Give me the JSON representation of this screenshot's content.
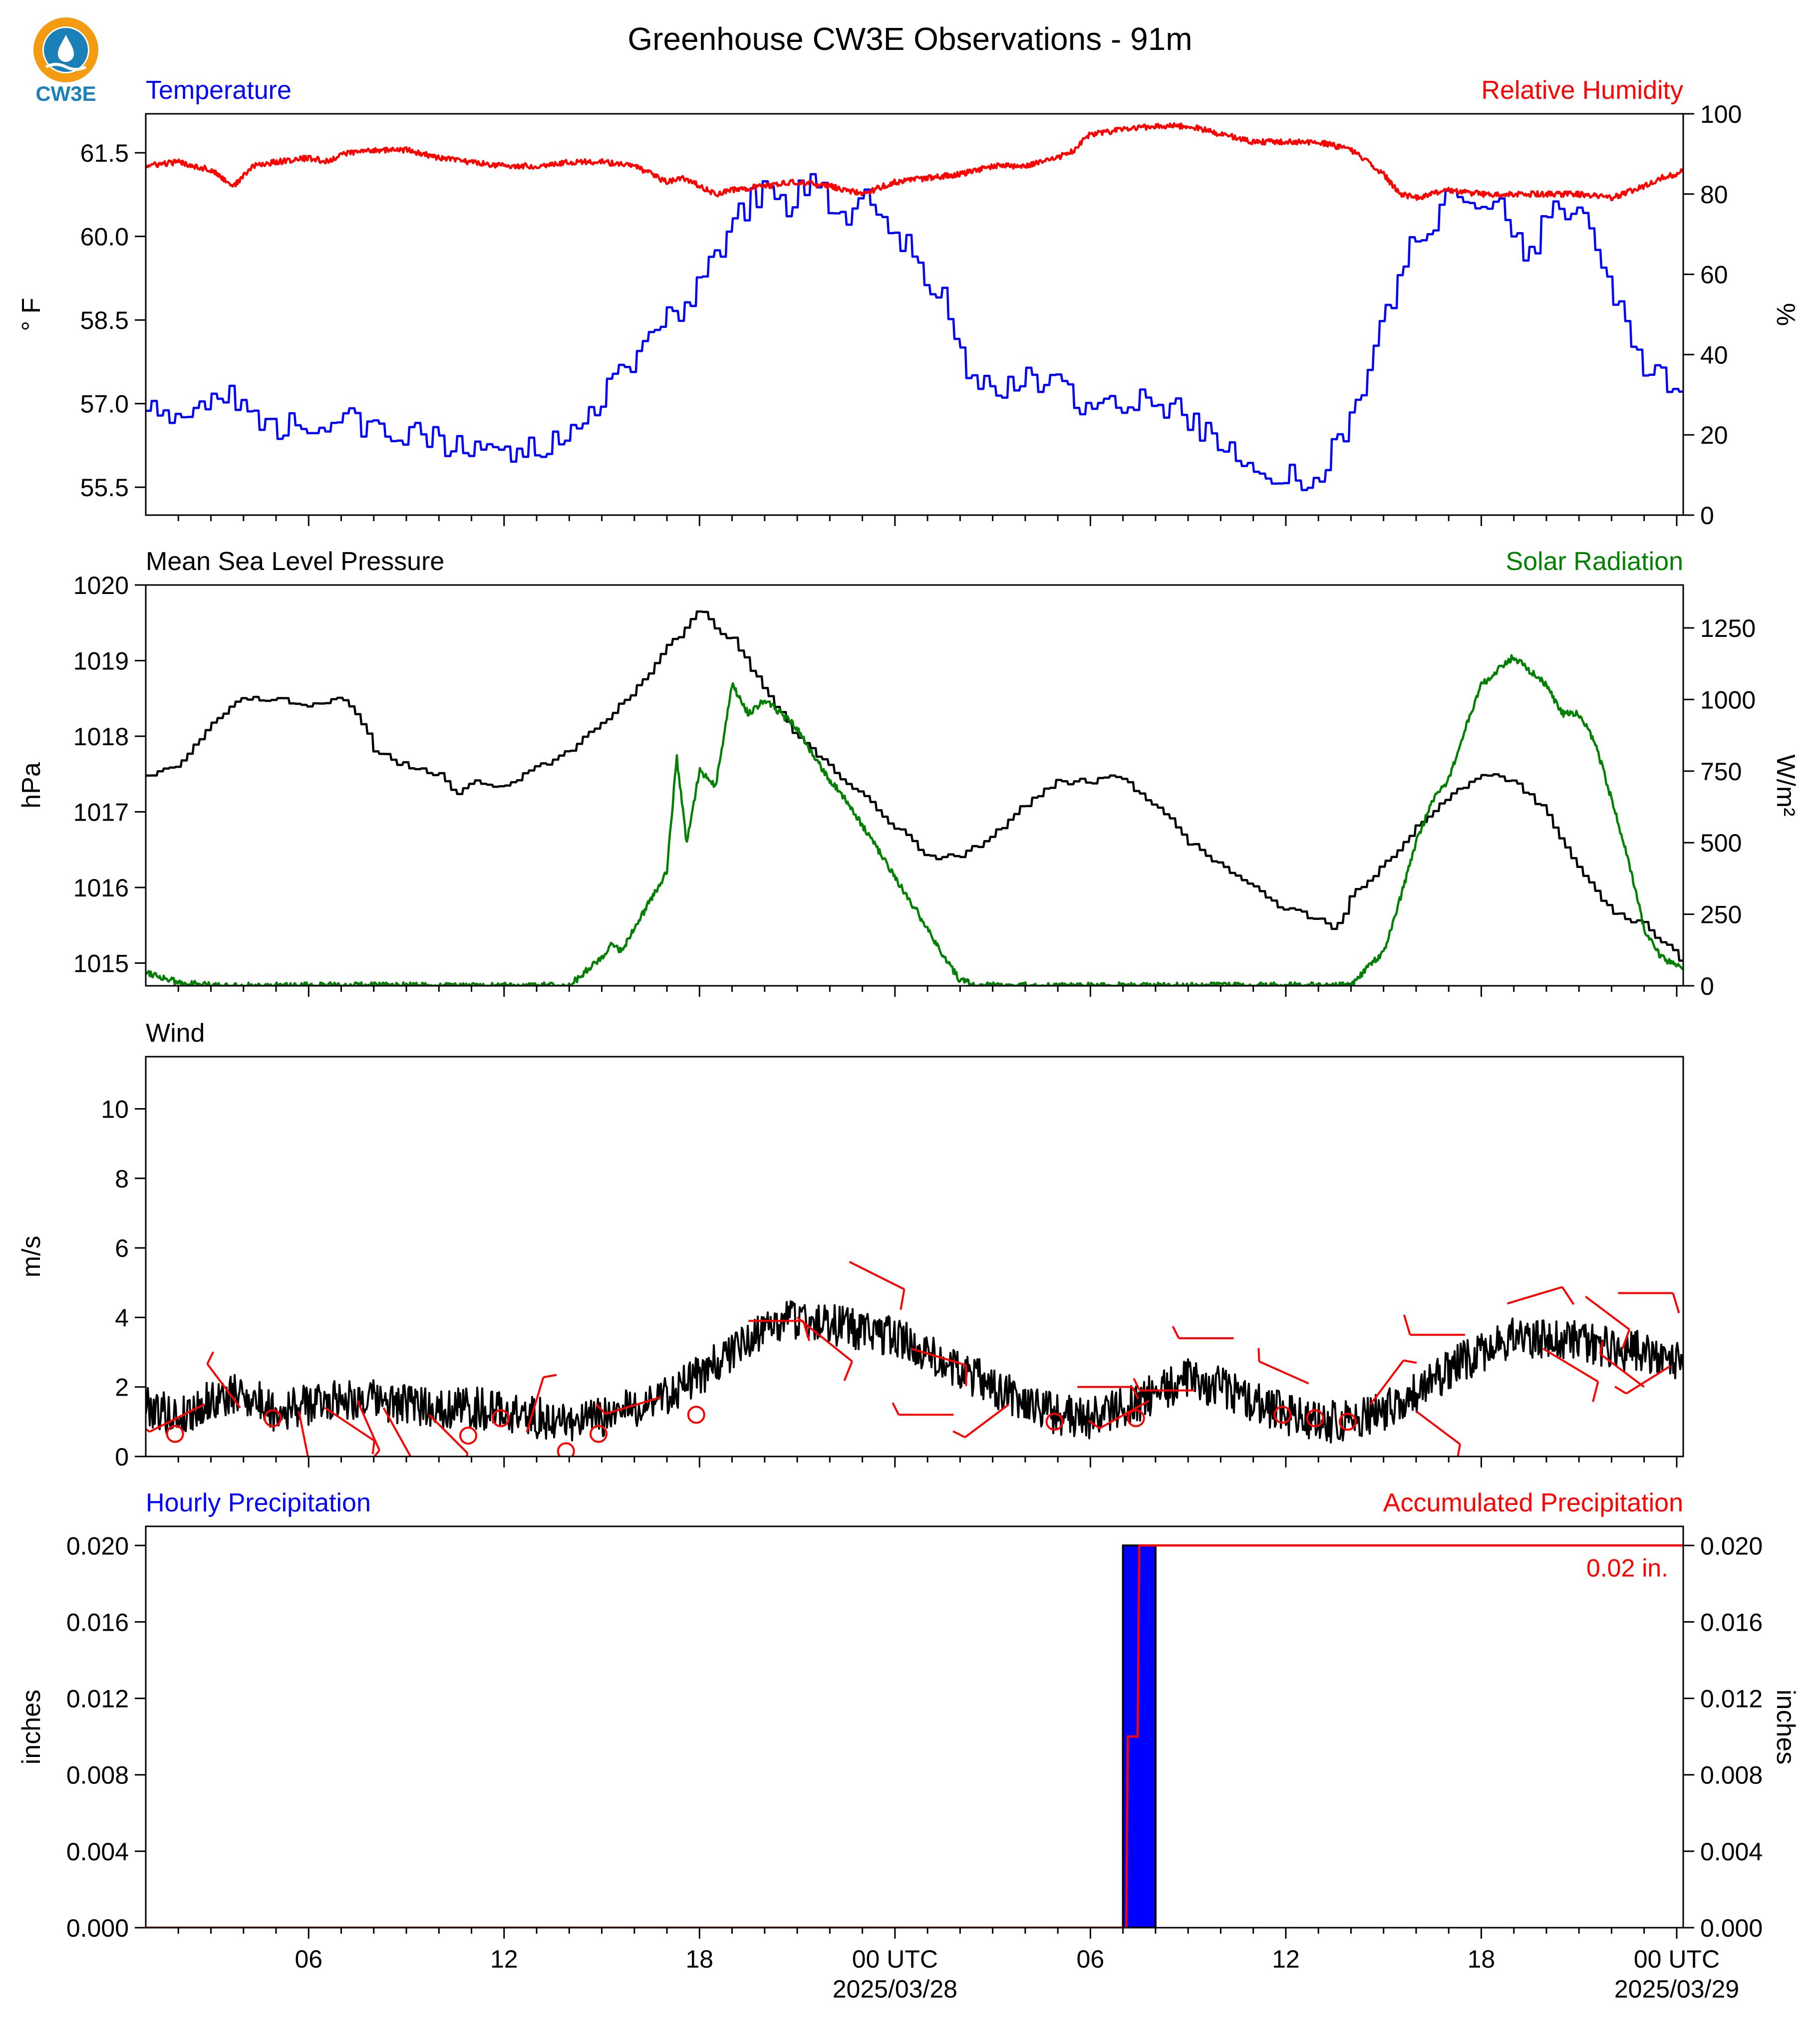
{
  "title": "Greenhouse CW3E Observations - 91m",
  "logo": {
    "text": "CW3E",
    "colors": {
      "ring": "#f39c12",
      "water": "#1b7fb8"
    }
  },
  "colors": {
    "temperature": "#0000ff",
    "humidity": "#ff0000",
    "pressure": "#000000",
    "solar": "#008000",
    "wind": "#000000",
    "barbs": "#ff0000",
    "hourly": "#0000ff",
    "accum": "#ff0000"
  },
  "x_axis": {
    "start_hour": 1,
    "end_hour": 48.2,
    "tick_labels": [
      {
        "hour": 6,
        "label": "06"
      },
      {
        "hour": 12,
        "label": "12"
      },
      {
        "hour": 18,
        "label": "18"
      },
      {
        "hour": 24,
        "label": "00 UTC",
        "date": "2025/03/28"
      },
      {
        "hour": 30,
        "label": "06"
      },
      {
        "hour": 36,
        "label": "12"
      },
      {
        "hour": 42,
        "label": "18"
      },
      {
        "hour": 48,
        "label": "00 UTC",
        "date": "2025/03/29"
      }
    ]
  },
  "chart_data": [
    {
      "type": "line",
      "title_left": "Temperature",
      "title_right": "Relative Humidity",
      "ylabel": "° F",
      "ylabel_right": "%",
      "ylim": [
        55.0,
        62.2
      ],
      "yticks": [
        55.5,
        57.0,
        58.5,
        60.0,
        61.5
      ],
      "yticks_labels": [
        "55.5",
        "57.0",
        "58.5",
        "60.0",
        "61.5"
      ],
      "ylim_right": [
        0,
        100
      ],
      "yticks_right": [
        0,
        20,
        40,
        60,
        80,
        100
      ],
      "series": [
        {
          "axis": "left",
          "color": "#0000ff",
          "x": [
            1,
            1.5,
            2,
            3,
            3.5,
            4,
            4.5,
            5,
            6,
            7,
            8,
            9,
            10,
            11,
            12,
            13,
            14,
            14.5,
            15,
            15.5,
            16,
            16.5,
            17,
            17.5,
            18,
            18.5,
            19,
            19.5,
            20,
            20.5,
            21,
            21.5,
            22,
            22.5,
            23,
            23.5,
            24,
            24.5,
            25,
            25.5,
            26,
            26.5,
            27,
            28,
            29,
            30,
            31,
            32,
            33,
            34,
            35,
            36,
            36.5,
            37,
            37.5,
            38,
            38.5,
            39,
            39.5,
            40,
            40.5,
            41,
            41.5,
            42,
            42.5,
            43,
            43.5,
            44,
            44.5,
            45,
            45.5,
            46,
            46.5,
            47,
            47.5,
            48,
            48.2
          ],
          "y": [
            57.0,
            56.9,
            56.9,
            57.1,
            57.3,
            56.9,
            56.6,
            56.6,
            56.7,
            56.7,
            56.6,
            56.5,
            56.3,
            56.1,
            56.1,
            56.2,
            56.4,
            56.8,
            57.2,
            57.5,
            57.8,
            58.3,
            58.7,
            58.6,
            59.3,
            59.7,
            60.2,
            60.6,
            60.9,
            60.5,
            60.8,
            61.0,
            60.6,
            60.2,
            60.8,
            60.4,
            60.1,
            59.7,
            59.3,
            58.8,
            57.8,
            57.2,
            57.3,
            57.4,
            57.4,
            56.9,
            56.9,
            57.1,
            56.7,
            56.3,
            55.9,
            55.7,
            55.6,
            55.8,
            56.2,
            56.8,
            57.5,
            58.5,
            59.4,
            60.1,
            60.2,
            60.7,
            60.6,
            60.4,
            60.6,
            60.0,
            59.6,
            60.6,
            60.3,
            60.5,
            60.0,
            59.0,
            58.4,
            57.6,
            57.5,
            57.2,
            57.0
          ],
          "noise": 0.25
        },
        {
          "axis": "right",
          "color": "#ff0000",
          "x": [
            1,
            2,
            3,
            3.7,
            4.3,
            5,
            6,
            6.6,
            7,
            8,
            9,
            10,
            11,
            12,
            13,
            14,
            15,
            16,
            16.5,
            17,
            17.5,
            18,
            18.5,
            19,
            20,
            21,
            22,
            23,
            24,
            25,
            26,
            27,
            28,
            29,
            29.5,
            30,
            31,
            32,
            33,
            34,
            35,
            36,
            37,
            37.5,
            38,
            38.5,
            39,
            39.5,
            40,
            41,
            42,
            43,
            44,
            45,
            46,
            47,
            47.5,
            48,
            48.2
          ],
          "y": [
            87,
            88,
            86,
            82,
            87,
            88,
            89,
            88,
            90,
            91,
            91,
            89,
            88,
            87,
            87,
            88,
            88,
            87,
            85,
            83,
            84,
            82,
            80,
            81,
            82,
            83,
            82,
            80,
            83,
            84,
            85,
            87,
            87,
            89,
            91,
            95,
            96,
            97,
            97,
            95,
            93,
            93,
            93,
            92,
            91,
            88,
            85,
            80,
            79,
            81,
            80,
            80,
            80,
            80,
            79,
            82,
            84,
            85,
            86
          ],
          "noise": 0.7
        }
      ]
    },
    {
      "type": "line",
      "title_left": "Mean Sea Level Pressure",
      "title_right": "Solar Radiation",
      "ylabel": "hPa",
      "ylabel_right": "W/m²",
      "ylim": [
        1014.7,
        1020.0
      ],
      "yticks": [
        1015,
        1016,
        1017,
        1018,
        1019,
        1020
      ],
      "ylim_right": [
        0,
        1400
      ],
      "yticks_right": [
        0,
        250,
        500,
        750,
        1000,
        1250
      ],
      "series": [
        {
          "axis": "left",
          "color": "#000000",
          "x": [
            1,
            2,
            3,
            4,
            5,
            6,
            7,
            7.5,
            8,
            9,
            10,
            10.5,
            11,
            12,
            13,
            14,
            15,
            16,
            17,
            17.5,
            18,
            18.5,
            19,
            20,
            21,
            22,
            23,
            24,
            25,
            26,
            27,
            28,
            29,
            30,
            30.5,
            31,
            32,
            33,
            34,
            35,
            36,
            37,
            37.5,
            38,
            39,
            40,
            41,
            42,
            43,
            44,
            45,
            46,
            47,
            48,
            48.2
          ],
          "y": [
            1017.5,
            1017.6,
            1018.2,
            1018.5,
            1018.5,
            1018.4,
            1018.5,
            1018.3,
            1017.8,
            1017.6,
            1017.5,
            1017.2,
            1017.4,
            1017.3,
            1017.6,
            1017.8,
            1018.2,
            1018.6,
            1019.2,
            1019.4,
            1019.7,
            1019.4,
            1019.3,
            1018.6,
            1018.0,
            1017.6,
            1017.2,
            1016.8,
            1016.4,
            1016.4,
            1016.7,
            1017.1,
            1017.4,
            1017.4,
            1017.5,
            1017.4,
            1017.1,
            1016.6,
            1016.3,
            1016.0,
            1015.7,
            1015.6,
            1015.4,
            1015.9,
            1016.3,
            1016.8,
            1017.2,
            1017.5,
            1017.4,
            1017.0,
            1016.2,
            1015.7,
            1015.5,
            1015.1,
            1015.0
          ],
          "noise": 0.04
        },
        {
          "axis": "right",
          "color": "#008000",
          "x": [
            1,
            1.5,
            2,
            3,
            14,
            15,
            15.3,
            15.6,
            16,
            16.5,
            17,
            17.3,
            17.6,
            18,
            18.5,
            19,
            19.5,
            20,
            20.5,
            21,
            21.5,
            22,
            22.5,
            23,
            23.5,
            24,
            24.5,
            25,
            25.5,
            26,
            26.5,
            27,
            36,
            38,
            38.5,
            39,
            39.5,
            40,
            40.5,
            41,
            41.5,
            42,
            42.5,
            43,
            43.5,
            44,
            44.5,
            45,
            45.5,
            46,
            46.5,
            47,
            47.5,
            48,
            48.2
          ],
          "y": [
            50,
            30,
            10,
            0,
            0,
            100,
            150,
            120,
            200,
            300,
            400,
            800,
            500,
            750,
            700,
            1050,
            950,
            1000,
            950,
            900,
            800,
            720,
            650,
            560,
            470,
            380,
            290,
            200,
            100,
            20,
            0,
            0,
            0,
            0,
            60,
            120,
            300,
            500,
            650,
            720,
            900,
            1050,
            1100,
            1150,
            1100,
            1050,
            950,
            950,
            850,
            650,
            450,
            200,
            100,
            70,
            50
          ],
          "noise": 12
        }
      ]
    },
    {
      "type": "line",
      "title_left": "Wind",
      "ylabel": "m/s",
      "ylim": [
        0,
        11.5
      ],
      "yticks": [
        0,
        2,
        4,
        6,
        8,
        10
      ],
      "series": [
        {
          "axis": "left",
          "color": "#000000",
          "x": [
            1,
            2,
            3,
            4,
            5,
            6,
            7,
            8,
            9,
            10,
            11,
            12,
            13,
            14,
            15,
            16,
            17,
            18,
            19,
            20,
            21,
            22,
            23,
            24,
            25,
            26,
            27,
            28,
            29,
            30,
            31,
            32,
            33,
            34,
            35,
            36,
            37,
            38,
            39,
            40,
            41,
            42,
            43,
            44,
            45,
            46,
            47,
            48,
            48.2
          ],
          "y": [
            1.5,
            1.1,
            1.6,
            1.8,
            1.3,
            1.5,
            1.7,
            1.6,
            1.5,
            1.4,
            1.4,
            1.3,
            1.1,
            1.0,
            1.1,
            1.4,
            1.8,
            2.3,
            3.0,
            3.7,
            4.0,
            3.8,
            3.6,
            3.4,
            3.0,
            2.5,
            2.0,
            1.5,
            1.2,
            1.1,
            1.4,
            1.8,
            2.2,
            2.0,
            1.6,
            1.2,
            1.0,
            1.0,
            1.3,
            1.8,
            2.5,
            3.0,
            3.4,
            3.4,
            3.3,
            3.1,
            3.0,
            2.7,
            2.5
          ],
          "noise": 0.6
        }
      ],
      "barbs": [
        {
          "x": 1.9,
          "y": 0.65,
          "calm": true
        },
        {
          "x": 2.8,
          "y": 1.5,
          "u": -1.0,
          "v": -0.5,
          "speed": 5
        },
        {
          "x": 3.9,
          "y": 1.4,
          "u": -0.6,
          "v": 0.8,
          "speed": 5
        },
        {
          "x": 4.9,
          "y": 1.1,
          "calm": true
        },
        {
          "x": 5.7,
          "y": 1.3,
          "u": 0.2,
          "v": -1.0,
          "speed": 5
        },
        {
          "x": 6.5,
          "y": 1.4,
          "u": 0.9,
          "v": -0.6,
          "speed": 5
        },
        {
          "x": 7.5,
          "y": 1.6,
          "u": 0.4,
          "v": -0.9,
          "speed": 5
        },
        {
          "x": 8.3,
          "y": 1.4,
          "u": 0.5,
          "v": -0.9,
          "speed": 5
        },
        {
          "x": 9.7,
          "y": 1.2,
          "u": 0.7,
          "v": -0.7,
          "speed": 5
        },
        {
          "x": 10.9,
          "y": 0.6,
          "calm": true
        },
        {
          "x": 11.9,
          "y": 1.1,
          "calm": true
        },
        {
          "x": 12.7,
          "y": 0.7,
          "u": 0.3,
          "v": 1.0,
          "speed": 5
        },
        {
          "x": 13.9,
          "y": 0.15,
          "calm": true
        },
        {
          "x": 14.9,
          "y": 0.65,
          "calm": true
        },
        {
          "x": 16.8,
          "y": 1.7,
          "u": -1.0,
          "v": -0.3,
          "speed": 5
        },
        {
          "x": 17.9,
          "y": 1.2,
          "calm": true
        },
        {
          "x": 19.5,
          "y": 3.9,
          "u": 1.0,
          "v": 0.0,
          "speed": 10
        },
        {
          "x": 21.0,
          "y": 4.0,
          "u": 1.0,
          "v": -0.8,
          "speed": 10
        },
        {
          "x": 22.6,
          "y": 5.6,
          "u": 1.0,
          "v": -0.5,
          "speed": 10
        },
        {
          "x": 24.5,
          "y": 3.1,
          "u": 1.0,
          "v": -0.3,
          "speed": 10
        },
        {
          "x": 25.8,
          "y": 1.2,
          "u": -1.0,
          "v": 0.0,
          "speed": 5
        },
        {
          "x": 27.5,
          "y": 1.5,
          "u": -0.8,
          "v": -0.6,
          "speed": 5
        },
        {
          "x": 28.9,
          "y": 1.0,
          "calm": true
        },
        {
          "x": 29.6,
          "y": 2.0,
          "u": 1.0,
          "v": 0.0,
          "speed": 5
        },
        {
          "x": 31.4,
          "y": 1.1,
          "calm": true
        },
        {
          "x": 31.8,
          "y": 1.6,
          "u": -0.9,
          "v": -0.5,
          "speed": 5
        },
        {
          "x": 33.2,
          "y": 1.9,
          "u": -1.0,
          "v": 0.0,
          "speed": 5
        },
        {
          "x": 34.4,
          "y": 3.4,
          "u": -1.0,
          "v": 0.0,
          "speed": 5
        },
        {
          "x": 35.9,
          "y": 1.2,
          "calm": true
        },
        {
          "x": 36.9,
          "y": 1.1,
          "calm": true
        },
        {
          "x": 37.9,
          "y": 1.0,
          "calm": true
        },
        {
          "x": 36.7,
          "y": 2.1,
          "u": -0.9,
          "v": 0.4,
          "speed": 5
        },
        {
          "x": 38.6,
          "y": 1.5,
          "u": 0.6,
          "v": 0.8,
          "speed": 5
        },
        {
          "x": 40.0,
          "y": 1.3,
          "u": 0.8,
          "v": -0.6,
          "speed": 5
        },
        {
          "x": 41.5,
          "y": 3.5,
          "u": -1.0,
          "v": 0.0,
          "speed": 10
        },
        {
          "x": 42.8,
          "y": 4.4,
          "u": 1.0,
          "v": 0.3,
          "speed": 10
        },
        {
          "x": 43.9,
          "y": 3.1,
          "u": 1.0,
          "v": -0.6,
          "speed": 10
        },
        {
          "x": 45.2,
          "y": 4.6,
          "u": 0.8,
          "v": -0.6,
          "speed": 10
        },
        {
          "x": 46.2,
          "y": 4.7,
          "u": 1.0,
          "v": 0.0,
          "speed": 10
        },
        {
          "x": 47.0,
          "y": 2.0,
          "u": -0.8,
          "v": 0.6,
          "speed": 5
        },
        {
          "x": 47.8,
          "y": 2.6,
          "u": -0.8,
          "v": -0.5,
          "speed": 5
        }
      ]
    },
    {
      "type": "bar",
      "title_left": "Hourly Precipitation",
      "title_right": "Accumulated Precipitation",
      "ylabel": "inches",
      "ylabel_right": "inches",
      "ylim": [
        0,
        0.021
      ],
      "yticks": [
        0,
        0.004,
        0.008,
        0.012,
        0.016,
        0.02
      ],
      "yticks_labels": [
        "0.000",
        "0.004",
        "0.008",
        "0.012",
        "0.016",
        "0.020"
      ],
      "bars": [
        {
          "x0": 31.0,
          "x1": 32.0,
          "value": 0.02
        }
      ],
      "accumulated": {
        "x": [
          1,
          31.1,
          31.15,
          31.45,
          31.5,
          48.2
        ],
        "y": [
          0,
          0,
          0.01,
          0.01,
          0.02,
          0.02
        ]
      },
      "annotation": "0.02 in."
    }
  ]
}
